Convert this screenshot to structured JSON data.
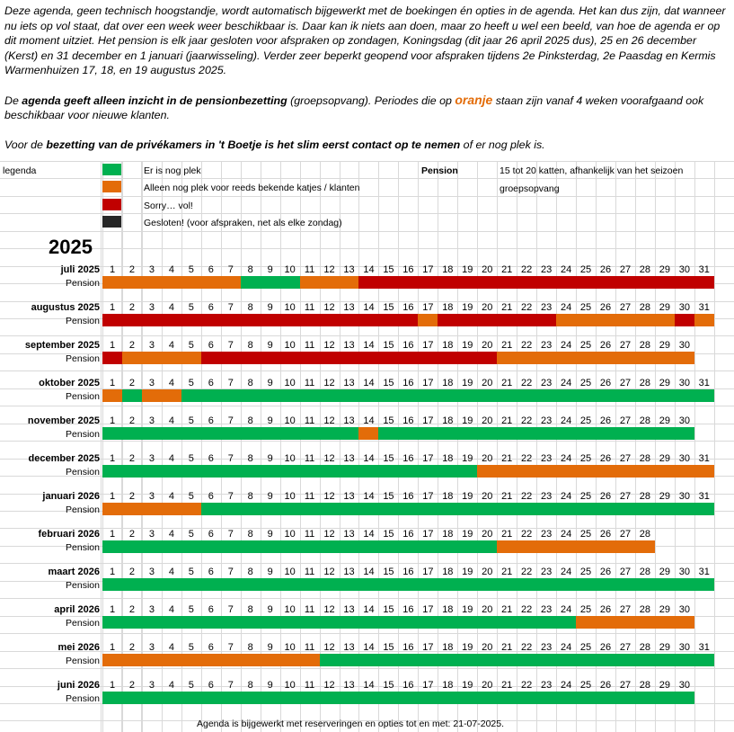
{
  "intro": {
    "p1": "Deze agenda, geen technisch hoogstandje, wordt automatisch bijgewerkt met de boekingen én opties in de agenda. Het kan dus zijn, dat wanneer nu iets op vol staat, dat over een week weer beschikbaar is. Daar kan ik niets aan doen, maar zo heeft u wel een beeld, van hoe de agenda er op dit moment uitziet. Het pension is elk jaar gesloten voor afspraken op zondagen, Koningsdag (dit jaar 26 april 2025 dus), 25 en 26 december (Kerst) en 31 december en 1 januari (jaarwisseling). Verder zeer beperkt geopend voor afspraken tijdens 2e Pinksterdag, 2e Paasdag en Kermis Warmenhuizen 17, 18, en 19 augustus 2025.",
    "p2_a": "De ",
    "p2_b": "agenda geeft alleen inzicht in de pensionbezetting",
    "p2_c": " (groepsopvang). Periodes die op ",
    "p2_d": "oranje",
    "p2_e": " staan zijn vanaf 4 weken voorafgaand ook beschikbaar voor nieuwe klanten.",
    "p3_a": "Voor de ",
    "p3_b": "bezetting van de privékamers in 't Boetje is het slim eerst contact op te nemen",
    "p3_c": " of er nog plek is."
  },
  "legend": {
    "title": "legenda",
    "items": [
      {
        "label": "Er is nog plek",
        "color": "#00b050"
      },
      {
        "label": "Alleen nog plek voor reeds bekende katjes / klanten",
        "color": "#e36c09"
      },
      {
        "label": "Sorry… vol!",
        "color": "#c00000"
      },
      {
        "label": "Gesloten! (voor afspraken, net als elke zondag)",
        "color": "#262626"
      }
    ],
    "pension_label": "Pension",
    "pension_info1": "15 tot 20 katten, afhankelijk van het seizoen",
    "pension_info2": "groepsopvang"
  },
  "year": "2025",
  "row_label": "Pension",
  "months": [
    {
      "name": "juli 2025",
      "days": 31,
      "segments": [
        [
          "orange",
          1,
          7
        ],
        [
          "green",
          8,
          10
        ],
        [
          "orange",
          11,
          13
        ],
        [
          "red",
          14,
          31
        ]
      ]
    },
    {
      "name": "augustus 2025",
      "days": 31,
      "segments": [
        [
          "red",
          1,
          16
        ],
        [
          "orange",
          17,
          17
        ],
        [
          "red",
          18,
          23
        ],
        [
          "orange",
          24,
          29
        ],
        [
          "red",
          30,
          30
        ],
        [
          "orange",
          31,
          31
        ]
      ]
    },
    {
      "name": "september 2025",
      "days": 30,
      "segments": [
        [
          "red",
          1,
          1
        ],
        [
          "orange",
          2,
          5
        ],
        [
          "red",
          6,
          20
        ],
        [
          "orange",
          21,
          30
        ]
      ]
    },
    {
      "name": "oktober 2025",
      "days": 31,
      "segments": [
        [
          "orange",
          1,
          1
        ],
        [
          "green",
          2,
          2
        ],
        [
          "orange",
          3,
          4
        ],
        [
          "green",
          5,
          31
        ]
      ]
    },
    {
      "name": "november 2025",
      "days": 30,
      "segments": [
        [
          "green",
          1,
          13
        ],
        [
          "orange",
          14,
          14
        ],
        [
          "green",
          15,
          30
        ]
      ]
    },
    {
      "name": "december 2025",
      "days": 31,
      "segments": [
        [
          "green",
          1,
          19
        ],
        [
          "orange",
          20,
          31
        ]
      ]
    },
    {
      "name": "januari 2026",
      "days": 31,
      "segments": [
        [
          "orange",
          1,
          5
        ],
        [
          "green",
          6,
          31
        ]
      ]
    },
    {
      "name": "februari 2026",
      "days": 28,
      "segments": [
        [
          "green",
          1,
          20
        ],
        [
          "orange",
          21,
          28
        ]
      ]
    },
    {
      "name": "maart 2026",
      "days": 31,
      "segments": [
        [
          "green",
          1,
          31
        ]
      ]
    },
    {
      "name": "april 2026",
      "days": 30,
      "segments": [
        [
          "green",
          1,
          24
        ],
        [
          "orange",
          25,
          30
        ]
      ]
    },
    {
      "name": "mei 2026",
      "days": 31,
      "segments": [
        [
          "orange",
          1,
          11
        ],
        [
          "green",
          12,
          31
        ]
      ]
    },
    {
      "name": "juni 2026",
      "days": 30,
      "segments": [
        [
          "green",
          1,
          30
        ]
      ]
    }
  ],
  "footer": "Agenda is bijgewerkt met reserveringen en opties tot en met: 21-07-2025."
}
